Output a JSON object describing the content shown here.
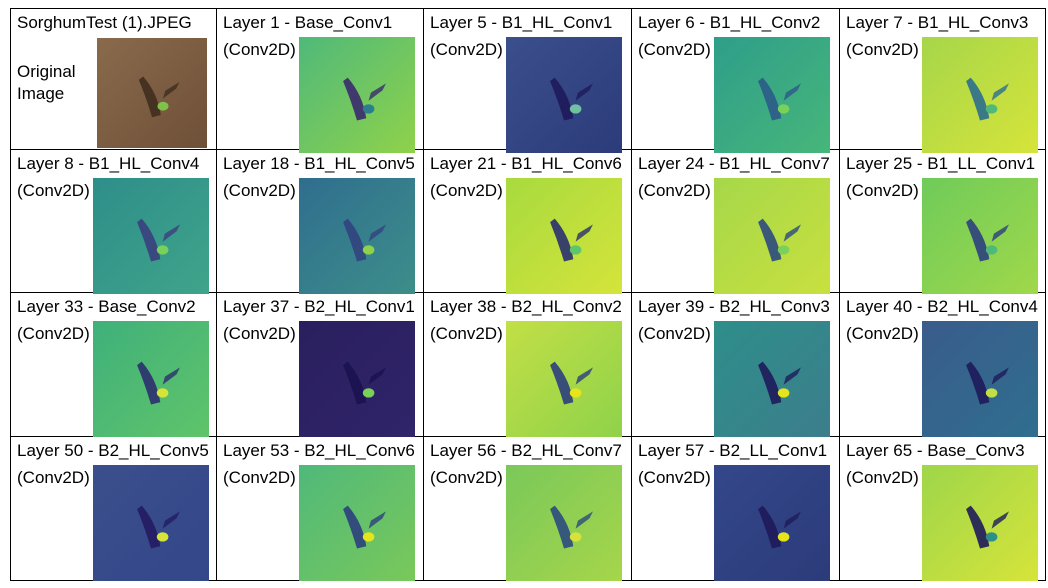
{
  "grid": {
    "rows": [
      [
        {
          "title": "SorghumTest (1).JPEG",
          "subtitle": "Original Image"
        },
        {
          "title": "Layer 1 - Base_Conv1",
          "subtitle": "(Conv2D)"
        },
        {
          "title": "Layer 5 - B1_HL_Conv1",
          "subtitle": "(Conv2D)"
        },
        {
          "title": "Layer 6 - B1_HL_Conv2",
          "subtitle": "(Conv2D)"
        },
        {
          "title": "Layer 7 - B1_HL_Conv3",
          "subtitle": "(Conv2D)"
        }
      ],
      [
        {
          "title": "Layer 8 - B1_HL_Conv4",
          "subtitle": "(Conv2D)"
        },
        {
          "title": "Layer 18 - B1_HL_Conv5",
          "subtitle": "(Conv2D)"
        },
        {
          "title": "Layer 21 - B1_HL_Conv6",
          "subtitle": "(Conv2D)"
        },
        {
          "title": "Layer 24 - B1_HL_Conv7",
          "subtitle": "(Conv2D)"
        },
        {
          "title": "Layer 25 - B1_LL_Conv1",
          "subtitle": "(Conv2D)"
        }
      ],
      [
        {
          "title": "Layer 33 - Base_Conv2",
          "subtitle": "(Conv2D)"
        },
        {
          "title": "Layer 37 - B2_HL_Conv1",
          "subtitle": "(Conv2D)"
        },
        {
          "title": "Layer 38 - B2_HL_Conv2",
          "subtitle": "(Conv2D)"
        },
        {
          "title": "Layer 39 - B2_HL_Conv3",
          "subtitle": "(Conv2D)"
        },
        {
          "title": "Layer 40 - B2_HL_Conv4",
          "subtitle": "(Conv2D)"
        }
      ],
      [
        {
          "title": "Layer 50 - B2_HL_Conv5",
          "subtitle": "(Conv2D)"
        },
        {
          "title": "Layer 53 - B2_HL_Conv6",
          "subtitle": "(Conv2D)"
        },
        {
          "title": "Layer 56 - B2_HL_Conv7",
          "subtitle": "(Conv2D)"
        },
        {
          "title": "Layer 57 - B2_LL_Conv1",
          "subtitle": "(Conv2D)"
        },
        {
          "title": "Layer 65 - Base_Conv3",
          "subtitle": "(Conv2D)"
        }
      ]
    ]
  }
}
